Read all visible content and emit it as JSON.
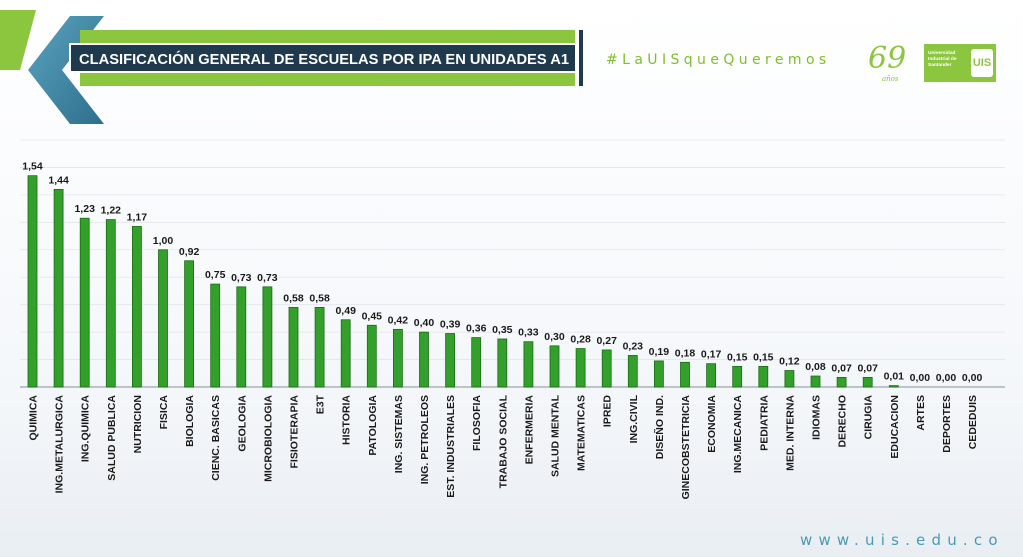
{
  "header": {
    "title": "CLASIFICACIÓN GENERAL DE ESCUELAS POR IPA EN UNIDADES A1",
    "hashtag": "#LaUISqueQueremos",
    "anniversary_number": "69",
    "anniversary_label": "años",
    "institution_name": "Universidad Industrial de Santander",
    "institution_seal": "UIS"
  },
  "footer": {
    "website": "www.uis.edu.co"
  },
  "colors": {
    "bar": "#33a02c",
    "bar_edge": "#1d6b15",
    "header_bar": "#8cc63f",
    "title_box": "#1f3a4d",
    "chevron": "#3f8aa8"
  },
  "chart_data": {
    "type": "bar",
    "title": "CLASIFICACIÓN GENERAL DE ESCUELAS POR IPA EN UNIDADES A1",
    "xlabel": "",
    "ylabel": "",
    "ylim": [
      0,
      1.8
    ],
    "grid": true,
    "legend": "none",
    "categories": [
      "QUIMICA",
      "ING.METALURGICA",
      "ING.QUIMICA",
      "SALUD PUBLICA",
      "NUTRICION",
      "FISICA",
      "BIOLOGIA",
      "CIENC. BASICAS",
      "GEOLOGIA",
      "MICROBIOLOGIA",
      "FISIOTERAPIA",
      "E3T",
      "HISTORIA",
      "PATOLOGIA",
      "ING. SISTEMAS",
      "ING. PETROLEOS",
      "EST. INDUSTRIALES",
      "FILOSOFIA",
      "TRABAJO SOCIAL",
      "ENFERMERIA",
      "SALUD MENTAL",
      "MATEMATICAS",
      "IPRED",
      "ING.CIVIL",
      "DISEÑO IND.",
      "GINECOBSTETRICIA",
      "ECONOMIA",
      "ING.MECANICA",
      "PEDIATRIA",
      "MED. INTERNA",
      "IDIOMAS",
      "DERECHO",
      "CIRUGIA",
      "EDUCACION",
      "ARTES",
      "DEPORTES",
      "CEDEDUIS"
    ],
    "values": [
      1.54,
      1.44,
      1.23,
      1.22,
      1.17,
      1.0,
      0.92,
      0.75,
      0.73,
      0.73,
      0.58,
      0.58,
      0.49,
      0.45,
      0.42,
      0.4,
      0.39,
      0.36,
      0.35,
      0.33,
      0.3,
      0.28,
      0.27,
      0.23,
      0.19,
      0.18,
      0.17,
      0.15,
      0.15,
      0.12,
      0.08,
      0.07,
      0.07,
      0.01,
      0.0,
      0.0,
      0.0
    ],
    "data_labels": [
      "1,54",
      "1,44",
      "1,23",
      "1,22",
      "1,17",
      "1,00",
      "0,92",
      "0,75",
      "0,73",
      "0,73",
      "0,58",
      "0,58",
      "0,49",
      "0,45",
      "0,42",
      "0,40",
      "0,39",
      "0,36",
      "0,35",
      "0,33",
      "0,30",
      "0,28",
      "0,27",
      "0,23",
      "0,19",
      "0,18",
      "0,17",
      "0,15",
      "0,15",
      "0,12",
      "0,08",
      "0,07",
      "0,07",
      "0,01",
      "0,00",
      "0,00",
      "0,00"
    ]
  }
}
